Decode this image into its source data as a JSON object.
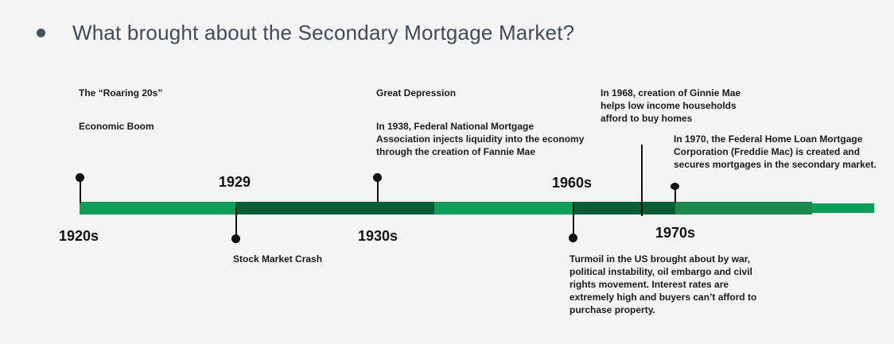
{
  "title": "What brought about the Secondary Mortgage Market?",
  "years": {
    "y1920s": "1920s",
    "y1929": "1929",
    "y1930s": "1930s",
    "y1960s": "1960s",
    "y1970s": "1970s"
  },
  "events": {
    "roaring": "The “Roaring 20s”",
    "boom": "Economic Boom",
    "crash": "Stock Market Crash",
    "depression": "Great Depression",
    "fannie": [
      "In 1938, Federal National Mortgage",
      "Association injects liquidity into the economy",
      "through the creation of Fannie Mae"
    ],
    "ginnie": [
      "In 1968, creation of Ginnie Mae",
      "helps low income households",
      "afford to buy homes"
    ],
    "freddie": [
      "In 1970, the Federal Home Loan Mortgage",
      "Corporation (Freddie Mac) is created and",
      "secures mortgages in the secondary market."
    ],
    "turmoil": [
      "Turmoil in the US brought about by war,",
      "political instability, oil embargo and civil",
      "rights movement. Interest rates are",
      "extremely high and buyers can’t afford to",
      "purchase property."
    ]
  },
  "colors": {
    "light_green": "#0f9d58",
    "dark_green": "#0b5e34",
    "mid_green": "#178a4c"
  }
}
